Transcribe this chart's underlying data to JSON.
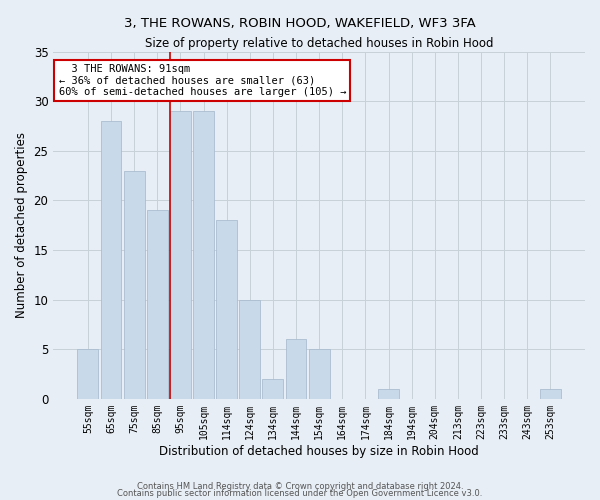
{
  "title": "3, THE ROWANS, ROBIN HOOD, WAKEFIELD, WF3 3FA",
  "subtitle": "Size of property relative to detached houses in Robin Hood",
  "xlabel": "Distribution of detached houses by size in Robin Hood",
  "ylabel": "Number of detached properties",
  "categories": [
    "55sqm",
    "65sqm",
    "75sqm",
    "85sqm",
    "95sqm",
    "105sqm",
    "114sqm",
    "124sqm",
    "134sqm",
    "144sqm",
    "154sqm",
    "164sqm",
    "174sqm",
    "184sqm",
    "194sqm",
    "204sqm",
    "213sqm",
    "223sqm",
    "233sqm",
    "243sqm",
    "253sqm"
  ],
  "values": [
    5,
    28,
    23,
    19,
    29,
    29,
    18,
    10,
    2,
    6,
    5,
    0,
    0,
    1,
    0,
    0,
    0,
    0,
    0,
    0,
    1
  ],
  "bar_color": "#c8d9ea",
  "bar_edge_color": "#aabdd0",
  "grid_color": "#c8d0d8",
  "bg_color": "#e8eef5",
  "annotation_text_line1": "3 THE ROWANS: 91sqm",
  "annotation_text_line2": "← 36% of detached houses are smaller (63)",
  "annotation_text_line3": "60% of semi-detached houses are larger (105) →",
  "annotation_box_color": "#ffffff",
  "annotation_border_color": "#cc0000",
  "vline_color": "#cc0000",
  "vline_x_index": 4,
  "ylim": [
    0,
    35
  ],
  "yticks": [
    0,
    5,
    10,
    15,
    20,
    25,
    30,
    35
  ],
  "footer1": "Contains HM Land Registry data © Crown copyright and database right 2024.",
  "footer2": "Contains public sector information licensed under the Open Government Licence v3.0."
}
